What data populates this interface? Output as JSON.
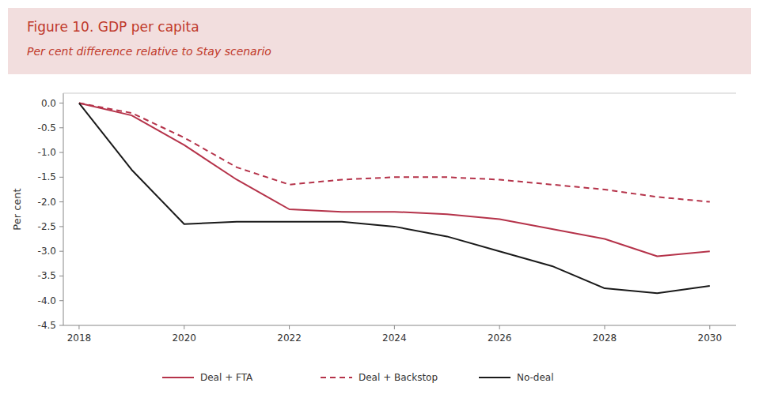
{
  "chart_data": {
    "type": "line",
    "title": "Figure 10. GDP per capita",
    "subtitle": "Per cent difference relative to Stay scenario",
    "y_label": "Per cent",
    "x": [
      2018,
      2019,
      2020,
      2021,
      2022,
      2023,
      2024,
      2025,
      2026,
      2027,
      2028,
      2029,
      2030
    ],
    "series": [
      {
        "name": "Deal + FTA",
        "color": "#b5334a",
        "line_style": "solid",
        "values": [
          0.0,
          -0.25,
          -0.85,
          -1.55,
          -2.15,
          -2.2,
          -2.2,
          -2.25,
          -2.35,
          -2.55,
          -2.75,
          -3.1,
          -3.0
        ]
      },
      {
        "name": "Deal + Backstop",
        "color": "#b5334a",
        "line_style": "dashed",
        "values": [
          0.0,
          -0.2,
          -0.7,
          -1.3,
          -1.65,
          -1.55,
          -1.5,
          -1.5,
          -1.55,
          -1.65,
          -1.75,
          -1.9,
          -2.0
        ]
      },
      {
        "name": "No-deal",
        "color": "#1a1a1a",
        "line_style": "solid",
        "values": [
          0.0,
          -1.35,
          -2.45,
          -2.4,
          -2.4,
          -2.4,
          -2.5,
          -2.7,
          -3.0,
          -3.3,
          -3.75,
          -3.85,
          -3.7
        ]
      }
    ],
    "xlim": [
      2017.7,
      2030.5
    ],
    "xticks": [
      2018,
      2020,
      2022,
      2024,
      2026,
      2028,
      2030
    ],
    "ylim": [
      -4.5,
      0.2
    ],
    "yticks": [
      {
        "value": 0.0,
        "label": "0.0"
      },
      -0.5,
      {
        "value": -1.0,
        "label": "-1.0"
      },
      -1.5,
      {
        "value": -2.0,
        "label": "-2.0"
      },
      -2.5,
      {
        "value": -3.0,
        "label": "-3.0"
      },
      -3.5,
      {
        "value": -4.0,
        "label": "-4.0"
      },
      -4.5
    ],
    "grid": false,
    "legend": "bottom"
  }
}
